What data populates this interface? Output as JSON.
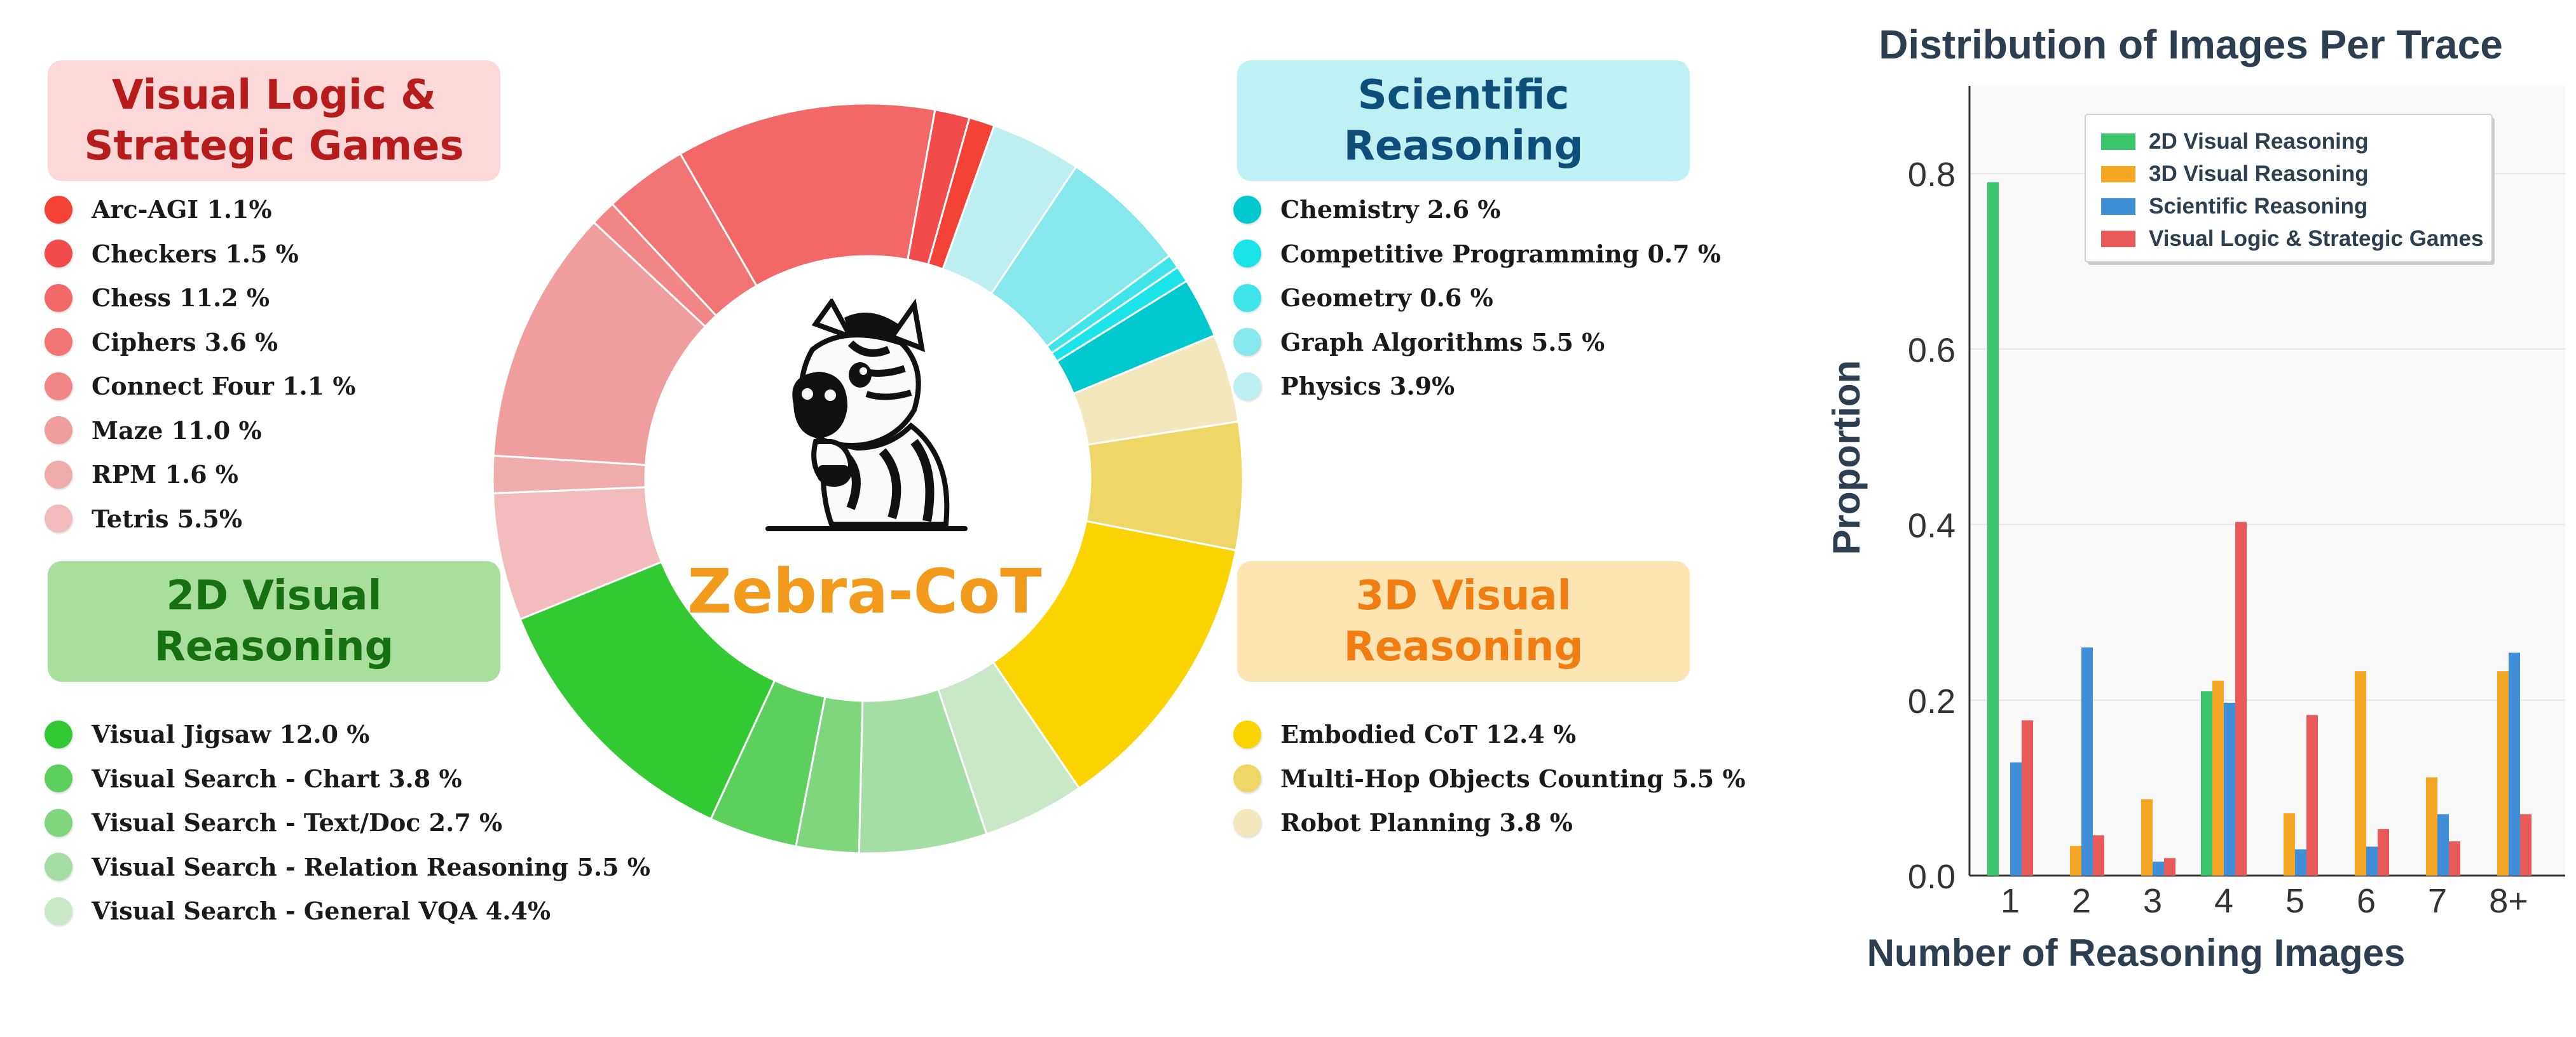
{
  "center_title": "Zebra-CoT",
  "colors": {
    "visual_logic": "#b71c1c",
    "scientific": "#0d4f7a",
    "visual2d": "#17700f",
    "visual3d": "#ef7d12"
  },
  "categories": {
    "visual_logic": {
      "title_lines": [
        "Visual Logic &",
        "Strategic Games"
      ],
      "box_color": "#fdd8d8",
      "items": [
        {
          "label": "Arc-AGI 1.1%",
          "color": "#f44336"
        },
        {
          "label": "Checkers 1.5 %",
          "color": "#f24b4b"
        },
        {
          "label": "Chess 11.2 %",
          "color": "#f26868"
        },
        {
          "label": "Ciphers 3.6 %",
          "color": "#f27575"
        },
        {
          "label": "Connect Four 1.1 %",
          "color": "#f28585"
        },
        {
          "label": "Maze 11.0 %",
          "color": "#f09d9d"
        },
        {
          "label": "RPM 1.6 %",
          "color": "#f0abab"
        },
        {
          "label": "Tetris 5.5%",
          "color": "#f2bcbc"
        }
      ]
    },
    "scientific": {
      "title_lines": [
        "Scientific",
        "Reasoning"
      ],
      "box_color": "#bff0f3",
      "items": [
        {
          "label": "Chemistry 2.6 %",
          "color": "#00c8cf"
        },
        {
          "label": "Competitive Programming 0.7 %",
          "color": "#1ae3ea"
        },
        {
          "label": "Geometry 0.6 %",
          "color": "#3ee4ea"
        },
        {
          "label": "Graph Algorithms 5.5 %",
          "color": "#86e8ec"
        },
        {
          "label": "Physics 3.9%",
          "color": "#bdeff1"
        }
      ]
    },
    "visual2d": {
      "title_lines": [
        "2D Visual",
        "Reasoning"
      ],
      "box_color": "#a8df9c",
      "items": [
        {
          "label": "Visual Jigsaw 12.0 %",
          "color": "#33c933"
        },
        {
          "label": "Visual Search - Chart 3.8 %",
          "color": "#5ccf5c"
        },
        {
          "label": "Visual Search - Text/Doc 2.7 %",
          "color": "#7fd67f"
        },
        {
          "label": "Visual Search - Relation Reasoning 5.5 %",
          "color": "#a4dea4"
        },
        {
          "label": "Visual Search - General VQA 4.4%",
          "color": "#c8e8c8"
        }
      ]
    },
    "visual3d": {
      "title_lines": [
        "3D Visual",
        "Reasoning"
      ],
      "box_color": "#fce4b3",
      "items": [
        {
          "label": "Embodied CoT 12.4 %",
          "color": "#fbd300"
        },
        {
          "label": "Multi-Hop Objects Counting 5.5 %",
          "color": "#efd767"
        },
        {
          "label": "Robot Planning 3.8 %",
          "color": "#f3e8bd"
        }
      ]
    }
  },
  "donut_order": [
    [
      "scientific",
      4
    ],
    [
      "scientific",
      3
    ],
    [
      "scientific",
      2
    ],
    [
      "scientific",
      1
    ],
    [
      "scientific",
      0
    ],
    [
      "visual3d",
      2
    ],
    [
      "visual3d",
      1
    ],
    [
      "visual3d",
      0
    ],
    [
      "visual2d",
      4
    ],
    [
      "visual2d",
      3
    ],
    [
      "visual2d",
      2
    ],
    [
      "visual2d",
      1
    ],
    [
      "visual2d",
      0
    ],
    [
      "visual_logic",
      7
    ],
    [
      "visual_logic",
      6
    ],
    [
      "visual_logic",
      5
    ],
    [
      "visual_logic",
      4
    ],
    [
      "visual_logic",
      3
    ],
    [
      "visual_logic",
      2
    ],
    [
      "visual_logic",
      1
    ],
    [
      "visual_logic",
      0
    ]
  ],
  "chart_data": [
    {
      "type": "pie",
      "variant": "donut",
      "center_label": "Zebra-CoT",
      "slices": [
        {
          "name": "Arc-AGI",
          "group": "Visual Logic & Strategic Games",
          "value": 1.1
        },
        {
          "name": "Checkers",
          "group": "Visual Logic & Strategic Games",
          "value": 1.5
        },
        {
          "name": "Chess",
          "group": "Visual Logic & Strategic Games",
          "value": 11.2
        },
        {
          "name": "Ciphers",
          "group": "Visual Logic & Strategic Games",
          "value": 3.6
        },
        {
          "name": "Connect Four",
          "group": "Visual Logic & Strategic Games",
          "value": 1.1
        },
        {
          "name": "Maze",
          "group": "Visual Logic & Strategic Games",
          "value": 11.0
        },
        {
          "name": "RPM",
          "group": "Visual Logic & Strategic Games",
          "value": 1.6
        },
        {
          "name": "Tetris",
          "group": "Visual Logic & Strategic Games",
          "value": 5.5
        },
        {
          "name": "Chemistry",
          "group": "Scientific Reasoning",
          "value": 2.6
        },
        {
          "name": "Competitive Programming",
          "group": "Scientific Reasoning",
          "value": 0.7
        },
        {
          "name": "Geometry",
          "group": "Scientific Reasoning",
          "value": 0.6
        },
        {
          "name": "Graph Algorithms",
          "group": "Scientific Reasoning",
          "value": 5.5
        },
        {
          "name": "Physics",
          "group": "Scientific Reasoning",
          "value": 3.9
        },
        {
          "name": "Visual Jigsaw",
          "group": "2D Visual Reasoning",
          "value": 12.0
        },
        {
          "name": "Visual Search - Chart",
          "group": "2D Visual Reasoning",
          "value": 3.8
        },
        {
          "name": "Visual Search - Text/Doc",
          "group": "2D Visual Reasoning",
          "value": 2.7
        },
        {
          "name": "Visual Search - Relation Reasoning",
          "group": "2D Visual Reasoning",
          "value": 5.5
        },
        {
          "name": "Visual Search - General VQA",
          "group": "2D Visual Reasoning",
          "value": 4.4
        },
        {
          "name": "Embodied CoT",
          "group": "3D Visual Reasoning",
          "value": 12.4
        },
        {
          "name": "Multi-Hop Objects Counting",
          "group": "3D Visual Reasoning",
          "value": 5.5
        },
        {
          "name": "Robot Planning",
          "group": "3D Visual Reasoning",
          "value": 3.8
        }
      ]
    },
    {
      "type": "bar",
      "title": "Distribution of Images Per Trace",
      "xlabel": "Number of Reasoning Images",
      "ylabel": "Proportion",
      "categories": [
        "1",
        "2",
        "3",
        "4",
        "5",
        "6",
        "7",
        "8+"
      ],
      "ylim": [
        0,
        0.9
      ],
      "yticks": [
        0.0,
        0.2,
        0.4,
        0.6,
        0.8
      ],
      "ytick_labels": [
        "0.0",
        "0.2",
        "0.4",
        "0.6",
        "0.8"
      ],
      "grid": true,
      "legend_position": "top-right",
      "series": [
        {
          "name": "2D Visual Reasoning",
          "color": "#3cc56d",
          "values": [
            0.79,
            0,
            0,
            0.21,
            0,
            0,
            0,
            0
          ]
        },
        {
          "name": "3D Visual Reasoning",
          "color": "#f5a623",
          "values": [
            0,
            0.034,
            0.087,
            0.222,
            0.071,
            0.233,
            0.112,
            0.233
          ]
        },
        {
          "name": "Scientific Reasoning",
          "color": "#3f8fd6",
          "values": [
            0.129,
            0.26,
            0.016,
            0.197,
            0.03,
            0.033,
            0.07,
            0.254
          ]
        },
        {
          "name": "Visual Logic & Strategic Games",
          "color": "#e85a5a",
          "values": [
            0.177,
            0.046,
            0.02,
            0.403,
            0.183,
            0.053,
            0.039,
            0.07
          ]
        }
      ]
    }
  ]
}
